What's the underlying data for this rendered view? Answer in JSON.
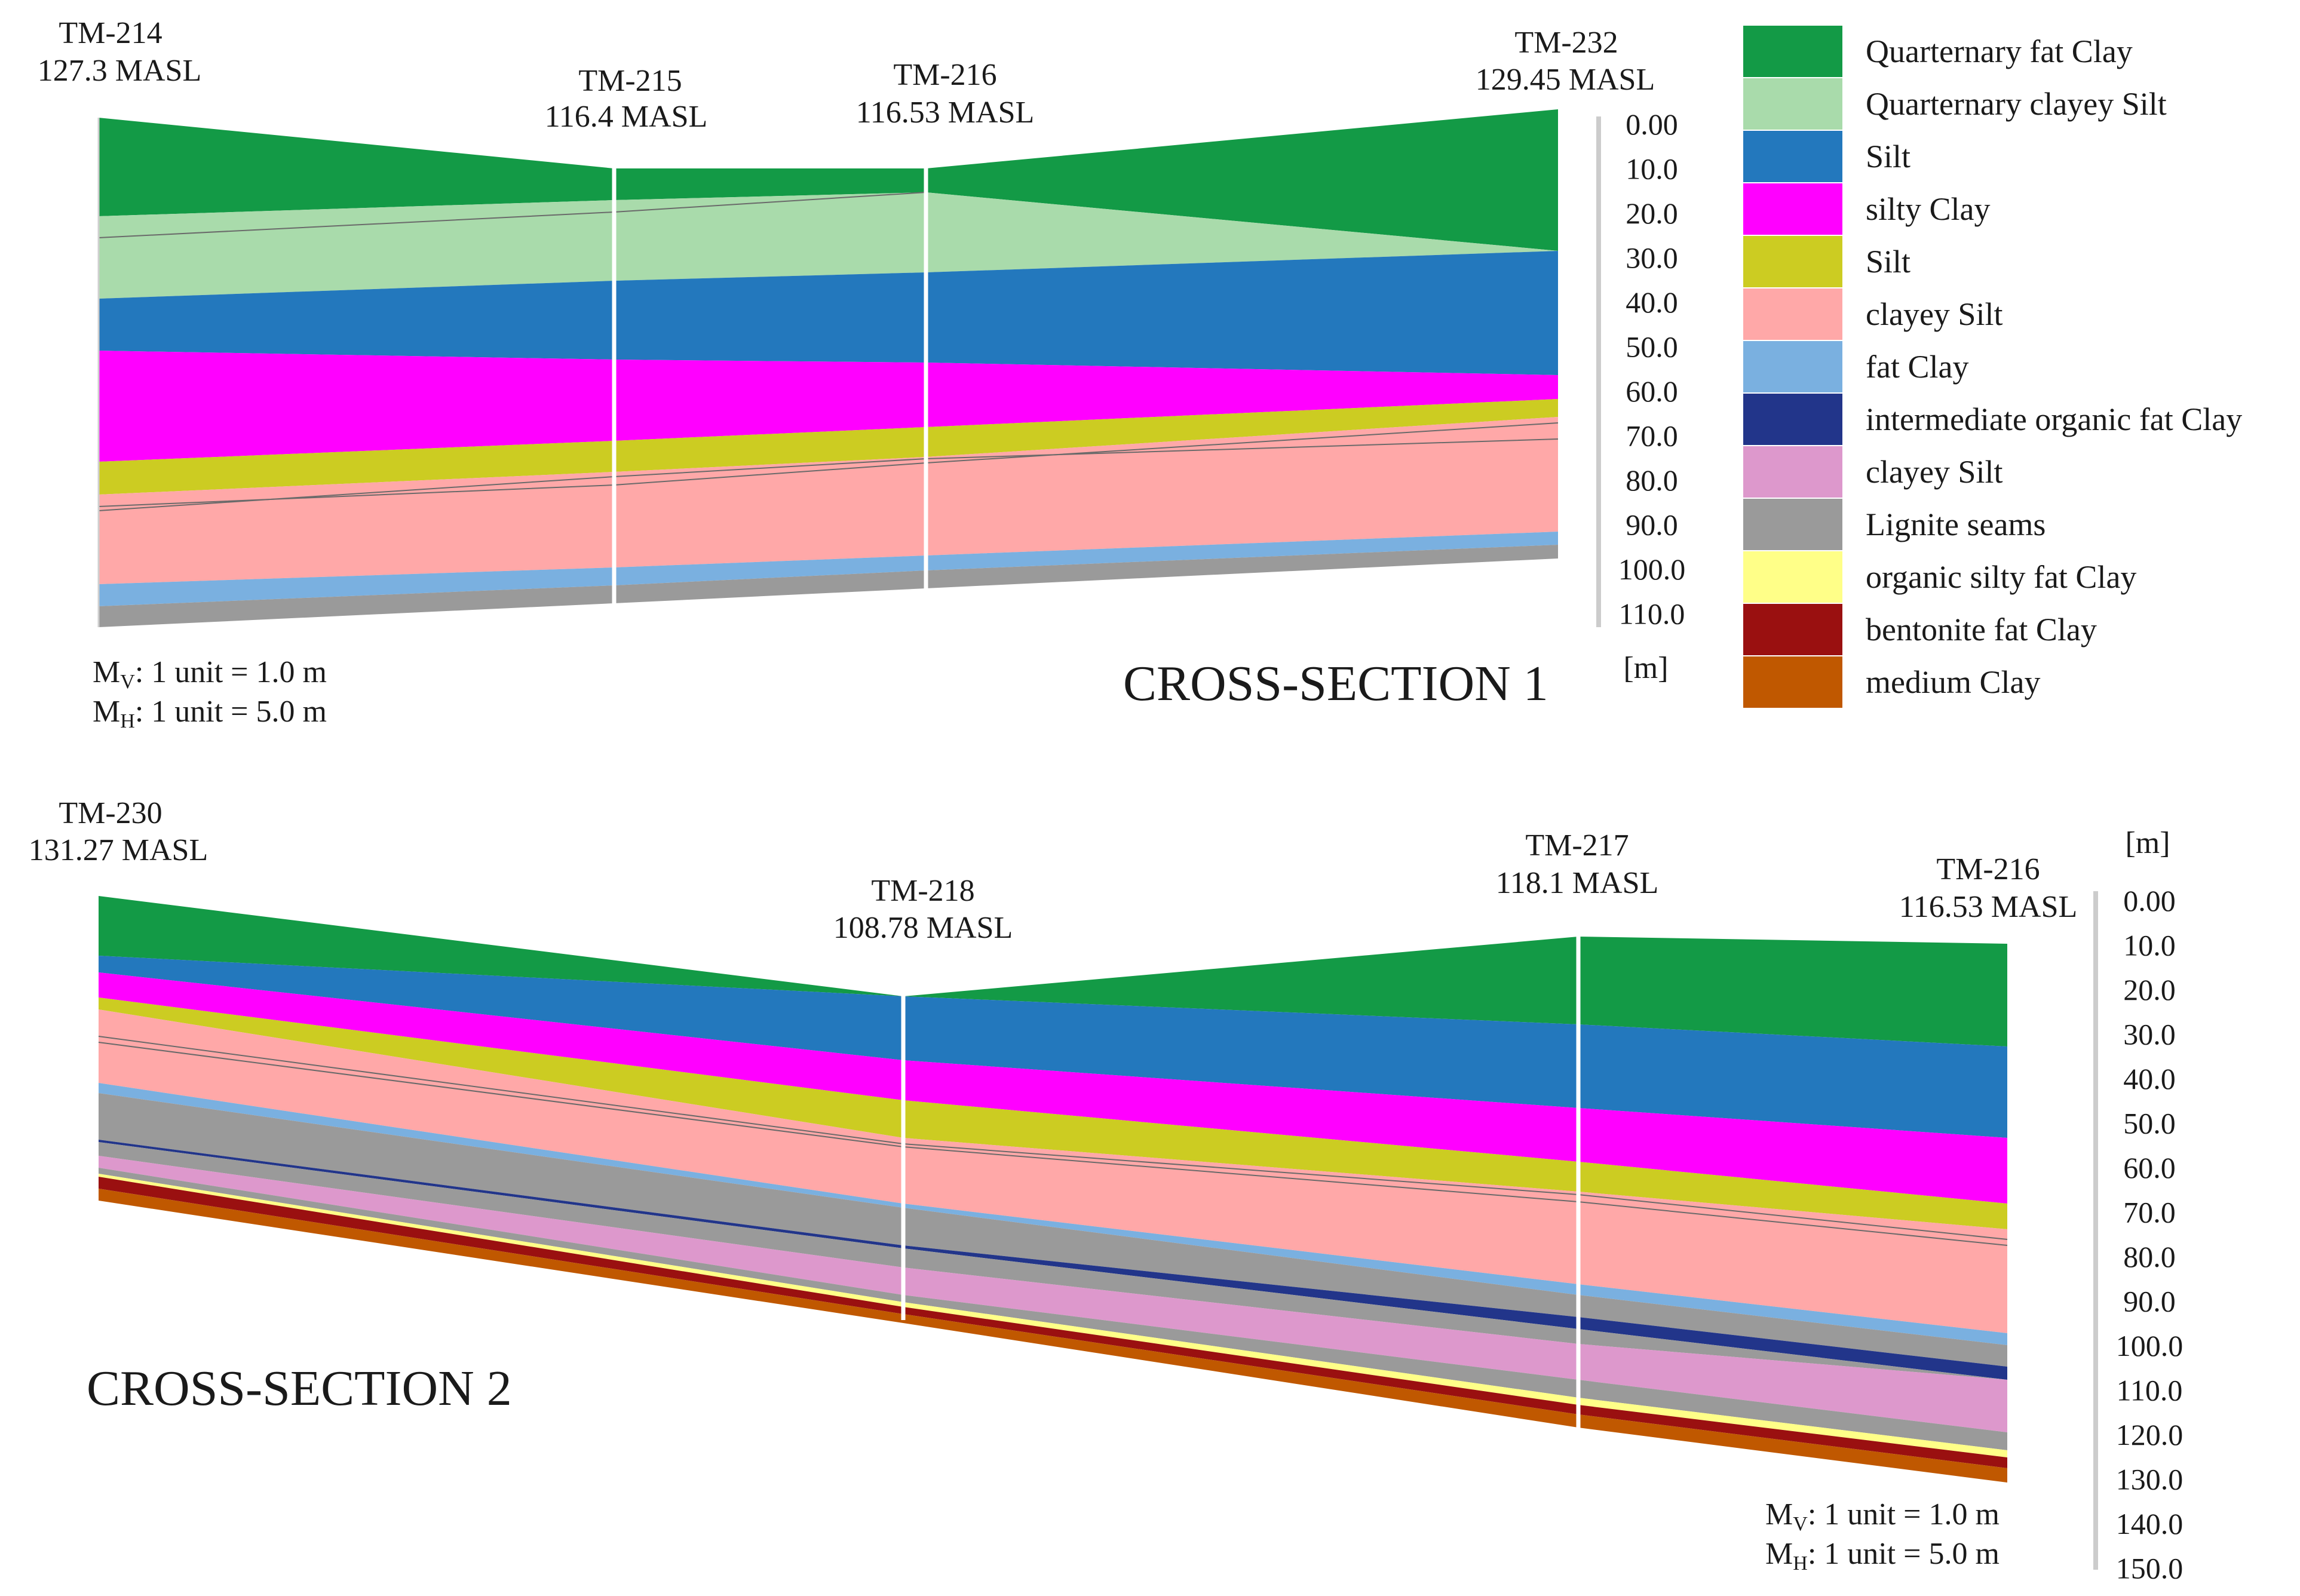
{
  "legend": [
    {
      "key": "q_fat_clay",
      "label": "Quarternary fat Clay",
      "color": "#139a46"
    },
    {
      "key": "q_clayey_silt",
      "label": "Quarternary clayey Silt",
      "color": "#a9dbab"
    },
    {
      "key": "silt_blue",
      "label": "Silt",
      "color": "#2378bd"
    },
    {
      "key": "silty_clay",
      "label": "silty Clay",
      "color": "#ff00ff"
    },
    {
      "key": "silt_olive",
      "label": "Silt",
      "color": "#cccc22"
    },
    {
      "key": "clayey_silt_pink",
      "label": "clayey Silt",
      "color": "#ffa8a8"
    },
    {
      "key": "fat_clay",
      "label": "fat Clay",
      "color": "#7ab0e0"
    },
    {
      "key": "int_org_fat_clay",
      "label": "intermediate organic fat Clay",
      "color": "#22358a"
    },
    {
      "key": "clayey_silt_violet",
      "label": "clayey Silt",
      "color": "#dd98cc"
    },
    {
      "key": "lignite",
      "label": "Lignite seams",
      "color": "#9a9a9a"
    },
    {
      "key": "org_silty_fat_clay",
      "label": "organic silty fat Clay",
      "color": "#ffff88"
    },
    {
      "key": "bentonite",
      "label": "bentonite fat Clay",
      "color": "#9a1010"
    },
    {
      "key": "medium_clay",
      "label": "medium Clay",
      "color": "#c05800"
    }
  ],
  "section1": {
    "title": "CROSS-SECTION 1",
    "unit_label": "[m]",
    "scale_v": "1 unit = 1.0 m",
    "scale_h": "1 unit = 5.0 m",
    "scale_v_prefix": "M",
    "scale_v_sub": "V",
    "scale_h_prefix": "M",
    "scale_h_sub": "H",
    "axis_ticks": [
      "0.00",
      "10.0",
      "20.0",
      "30.0",
      "40.0",
      "50.0",
      "60.0",
      "70.0",
      "80.0",
      "90.0",
      "100.0",
      "110.0"
    ],
    "boreholes": [
      {
        "name": "TM-214",
        "elev": "127.3 MASL"
      },
      {
        "name": "TM-215",
        "elev": "116.4 MASL"
      },
      {
        "name": "TM-216",
        "elev": "116.53 MASL"
      },
      {
        "name": "TM-232",
        "elev": "129.45 MASL"
      }
    ]
  },
  "section2": {
    "title": "CROSS-SECTION 2",
    "unit_label": "[m]",
    "scale_v": "1 unit = 1.0 m",
    "scale_h": "1 unit = 5.0 m",
    "scale_v_prefix": "M",
    "scale_v_sub": "V",
    "scale_h_prefix": "M",
    "scale_h_sub": "H",
    "axis_ticks": [
      "0.00",
      "10.0",
      "20.0",
      "30.0",
      "40.0",
      "50.0",
      "60.0",
      "70.0",
      "80.0",
      "90.0",
      "100.0",
      "110.0",
      "120.0",
      "130.0",
      "140.0",
      "150.0"
    ],
    "boreholes": [
      {
        "name": "TM-230",
        "elev": "131.27 MASL"
      },
      {
        "name": "TM-218",
        "elev": "108.78 MASL"
      },
      {
        "name": "TM-217",
        "elev": "118.1 MASL"
      },
      {
        "name": "TM-216",
        "elev": "116.53 MASL"
      }
    ]
  }
}
